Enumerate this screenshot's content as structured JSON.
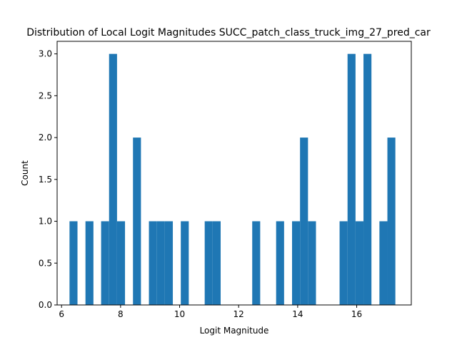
{
  "chart_data": {
    "type": "bar",
    "title": "Distribution of Local Logit Magnitudes SUCC_patch_class_truck_img_27_pred_car",
    "xlabel": "Logit Magnitude",
    "ylabel": "Count",
    "xlim": [
      5.85,
      17.85
    ],
    "ylim": [
      0,
      3.15
    ],
    "xticks": [
      "6",
      "8",
      "10",
      "12",
      "14",
      "16"
    ],
    "xtick_values": [
      6,
      8,
      10,
      12,
      14,
      16
    ],
    "yticks": [
      "0.0",
      "0.5",
      "1.0",
      "1.5",
      "2.0",
      "2.5",
      "3.0"
    ],
    "ytick_values": [
      0,
      0.5,
      1,
      1.5,
      2,
      2.5,
      3
    ],
    "grid": false,
    "bar_color": "#1f77b4",
    "bins": [
      {
        "x0": 6.27,
        "x1": 6.54,
        "count": 1
      },
      {
        "x0": 6.81,
        "x1": 7.08,
        "count": 1
      },
      {
        "x0": 7.34,
        "x1": 7.61,
        "count": 1
      },
      {
        "x0": 7.61,
        "x1": 7.88,
        "count": 3
      },
      {
        "x0": 7.88,
        "x1": 8.15,
        "count": 1
      },
      {
        "x0": 8.42,
        "x1": 8.69,
        "count": 2
      },
      {
        "x0": 8.96,
        "x1": 9.23,
        "count": 1
      },
      {
        "x0": 9.23,
        "x1": 9.5,
        "count": 1
      },
      {
        "x0": 9.5,
        "x1": 9.77,
        "count": 1
      },
      {
        "x0": 10.04,
        "x1": 10.31,
        "count": 1
      },
      {
        "x0": 10.85,
        "x1": 11.12,
        "count": 1
      },
      {
        "x0": 11.12,
        "x1": 11.39,
        "count": 1
      },
      {
        "x0": 12.46,
        "x1": 12.73,
        "count": 1
      },
      {
        "x0": 13.27,
        "x1": 13.54,
        "count": 1
      },
      {
        "x0": 13.81,
        "x1": 14.08,
        "count": 1
      },
      {
        "x0": 14.08,
        "x1": 14.35,
        "count": 2
      },
      {
        "x0": 14.35,
        "x1": 14.62,
        "count": 1
      },
      {
        "x0": 15.42,
        "x1": 15.69,
        "count": 1
      },
      {
        "x0": 15.69,
        "x1": 15.96,
        "count": 3
      },
      {
        "x0": 15.96,
        "x1": 16.23,
        "count": 1
      },
      {
        "x0": 16.23,
        "x1": 16.5,
        "count": 3
      },
      {
        "x0": 16.77,
        "x1": 17.04,
        "count": 1
      },
      {
        "x0": 17.04,
        "x1": 17.31,
        "count": 2
      }
    ]
  }
}
